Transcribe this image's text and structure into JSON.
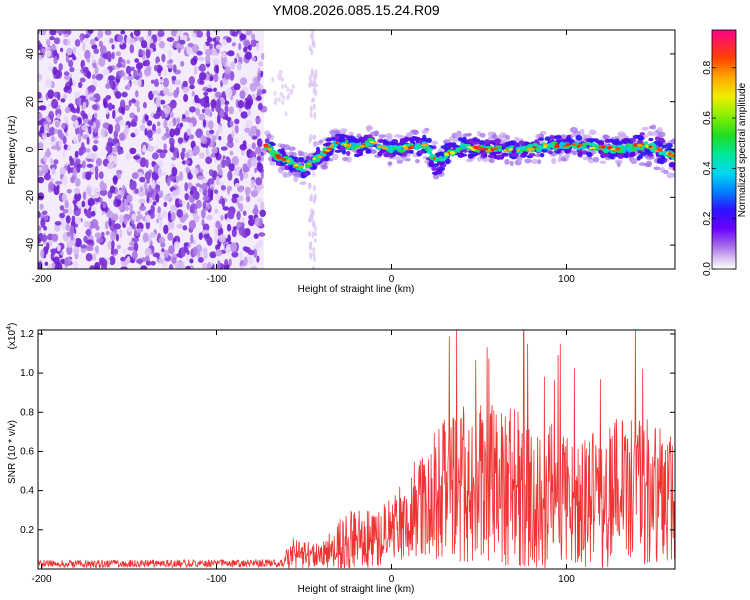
{
  "title": "YM08.2026.085.15.24.R09",
  "chart_data": [
    {
      "type": "heatmap",
      "xlabel": "Height of straight line (km)",
      "ylabel": "Frequency (Hz)",
      "xlim": [
        -202,
        162
      ],
      "ylim": [
        -50,
        50
      ],
      "xticks": [
        -200,
        -100,
        0,
        100
      ],
      "yticks": [
        -40,
        -20,
        0,
        20,
        40
      ],
      "noise_region": {
        "x_start": -202,
        "x_end": -73
      },
      "ridge_start": -72,
      "ridge_trace": [
        {
          "x": -72,
          "f": 2
        },
        {
          "x": -65,
          "f": -3
        },
        {
          "x": -58,
          "f": -5
        },
        {
          "x": -50,
          "f": -8
        },
        {
          "x": -45,
          "f": -5
        },
        {
          "x": -38,
          "f": -1
        },
        {
          "x": -32,
          "f": 3
        },
        {
          "x": -25,
          "f": 2
        },
        {
          "x": -20,
          "f": 1
        },
        {
          "x": -12,
          "f": 3
        },
        {
          "x": -5,
          "f": 1
        },
        {
          "x": 0,
          "f": 0
        },
        {
          "x": 10,
          "f": 1
        },
        {
          "x": 20,
          "f": 2
        },
        {
          "x": 25,
          "f": -5
        },
        {
          "x": 30,
          "f": -3
        },
        {
          "x": 40,
          "f": 1
        },
        {
          "x": 55,
          "f": 0
        },
        {
          "x": 70,
          "f": 0
        },
        {
          "x": 85,
          "f": 1
        },
        {
          "x": 100,
          "f": 2
        },
        {
          "x": 115,
          "f": 1
        },
        {
          "x": 130,
          "f": 0
        },
        {
          "x": 145,
          "f": 2
        },
        {
          "x": 162,
          "f": -3
        }
      ],
      "colorbar": {
        "label": "Normalized spectral amplitude",
        "range": [
          0,
          0.95
        ],
        "ticks": [
          "0.0",
          "0.2",
          "0.4",
          "0.6",
          "0.8"
        ]
      }
    },
    {
      "type": "line",
      "xlabel": "Height of straight line (km)",
      "ylabel": "SNR (10 * v/v)",
      "multiplier_base": "(x10",
      "multiplier_exp": "4",
      "multiplier_close": ")",
      "xlim": [
        -202,
        162
      ],
      "ylim": [
        0,
        1.22
      ],
      "xticks": [
        -200,
        -100,
        0,
        100
      ],
      "yticks": [
        "0.2",
        "0.4",
        "0.6",
        "0.8",
        "1.0",
        "1.2"
      ],
      "color": "#ee3333",
      "envelope": [
        {
          "x": -202,
          "mid": 0.025,
          "amp": 0.02
        },
        {
          "x": -62,
          "mid": 0.03,
          "amp": 0.02
        },
        {
          "x": -58,
          "mid": 0.08,
          "amp": 0.08
        },
        {
          "x": -40,
          "mid": 0.07,
          "amp": 0.06
        },
        {
          "x": -25,
          "mid": 0.15,
          "amp": 0.17
        },
        {
          "x": -10,
          "mid": 0.15,
          "amp": 0.14
        },
        {
          "x": 0,
          "mid": 0.2,
          "amp": 0.17
        },
        {
          "x": 20,
          "mid": 0.35,
          "amp": 0.3
        },
        {
          "x": 40,
          "mid": 0.45,
          "amp": 0.42
        },
        {
          "x": 80,
          "mid": 0.4,
          "amp": 0.4
        },
        {
          "x": 100,
          "mid": 0.35,
          "amp": 0.35
        },
        {
          "x": 140,
          "mid": 0.4,
          "amp": 0.4
        },
        {
          "x": 162,
          "mid": 0.35,
          "amp": 0.35
        }
      ]
    }
  ]
}
